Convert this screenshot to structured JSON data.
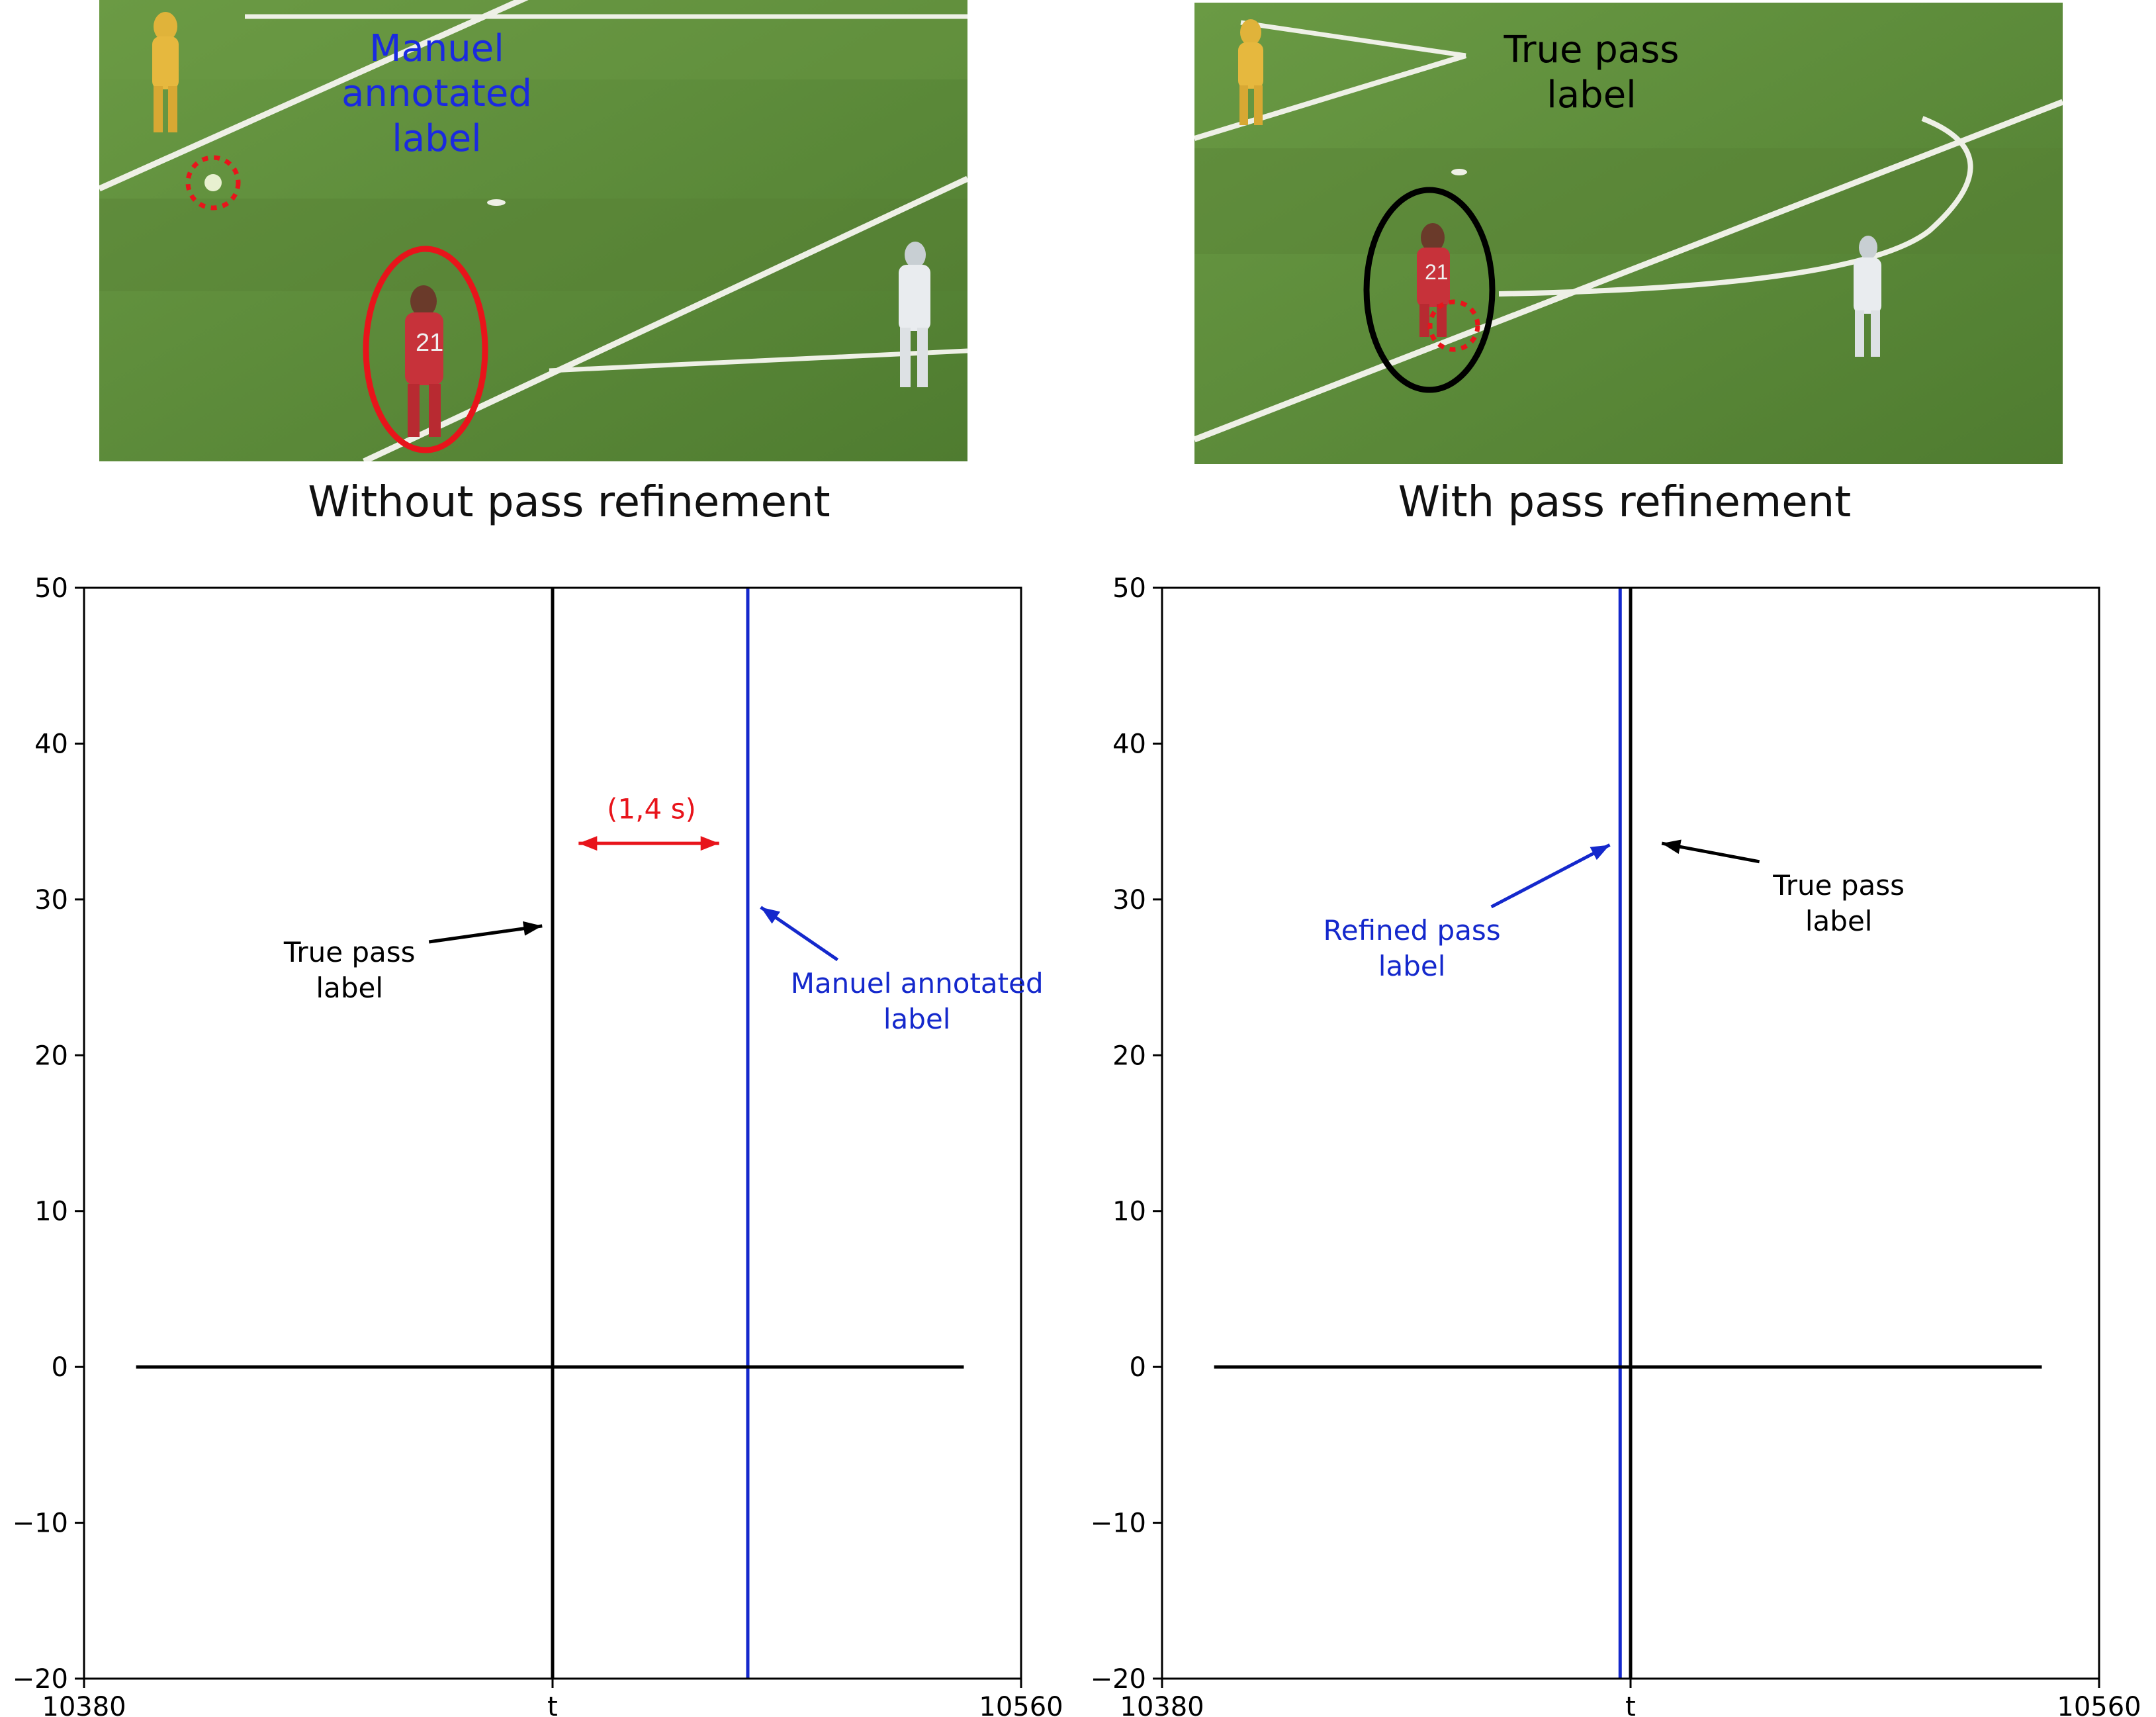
{
  "colors": {
    "pitch": "#5c8a3a",
    "pitch_dark": "#4f7c30",
    "line_white": "#f2f2ea",
    "red_player": "#c7323a",
    "yellow_player": "#e0b33a",
    "white_player": "#e9ecef",
    "annot_red": "#e8141b",
    "annot_blue": "#1428cc",
    "black": "#000000"
  },
  "left_panel": {
    "photo_label": [
      "Manuel annotated",
      "label"
    ],
    "caption": "Without pass refinement"
  },
  "right_panel": {
    "photo_label": [
      "True pass",
      "label"
    ],
    "caption": "With pass refinement"
  },
  "chart_data": [
    {
      "type": "line",
      "title": "",
      "xlabel": "",
      "ylabel": "",
      "xlim": [
        10380,
        10560
      ],
      "ylim": [
        -20,
        50
      ],
      "xtick_values": [
        10380,
        10470,
        10560
      ],
      "xtick_labels": [
        "10380",
        "t",
        "10560"
      ],
      "yticks": [
        -20,
        -10,
        0,
        10,
        20,
        30,
        40,
        50
      ],
      "grid": false,
      "series": [
        {
          "values": [
            [
              10390,
              0
            ],
            [
              10549,
              0
            ]
          ],
          "color": "#000000"
        }
      ],
      "vlines": [
        {
          "x": 10470,
          "color": "#000000"
        },
        {
          "x": 10507.5,
          "color": "#1428cc"
        }
      ],
      "annotations": [
        {
          "text": [
            "True pass",
            "label"
          ],
          "color": "#000000",
          "text_at": [
            10431,
            26
          ],
          "arrow_to": [
            10468,
            28.3
          ]
        },
        {
          "text": [
            "Manuel annotated",
            "label"
          ],
          "color": "#1428cc",
          "text_at": [
            10540,
            24
          ],
          "arrow_to": [
            10510,
            29.5
          ]
        },
        {
          "text": [
            "(1,4 s)"
          ],
          "color": "#e8141b",
          "text_at": [
            10489,
            35.2
          ],
          "double_arrow": [
            10475,
            10502,
            33.6
          ]
        }
      ]
    },
    {
      "type": "line",
      "title": "",
      "xlabel": "",
      "ylabel": "",
      "xlim": [
        10380,
        10560
      ],
      "ylim": [
        -20,
        50
      ],
      "xtick_values": [
        10380,
        10470,
        10560
      ],
      "xtick_labels": [
        "10380",
        "t",
        "10560"
      ],
      "yticks": [
        -20,
        -10,
        0,
        10,
        20,
        30,
        40,
        50
      ],
      "grid": false,
      "series": [
        {
          "values": [
            [
              10390,
              0
            ],
            [
              10549,
              0
            ]
          ],
          "color": "#000000"
        }
      ],
      "vlines": [
        {
          "x": 10468,
          "color": "#1428cc"
        },
        {
          "x": 10470,
          "color": "#000000"
        }
      ],
      "annotations": [
        {
          "text": [
            "Refined pass",
            "label"
          ],
          "color": "#1428cc",
          "text_at": [
            10428,
            27.4
          ],
          "arrow_to": [
            10466,
            33.5
          ]
        },
        {
          "text": [
            "True pass",
            "label"
          ],
          "color": "#000000",
          "text_at": [
            10510,
            30.3
          ],
          "arrow_to": [
            10476,
            33.6
          ]
        }
      ]
    }
  ]
}
